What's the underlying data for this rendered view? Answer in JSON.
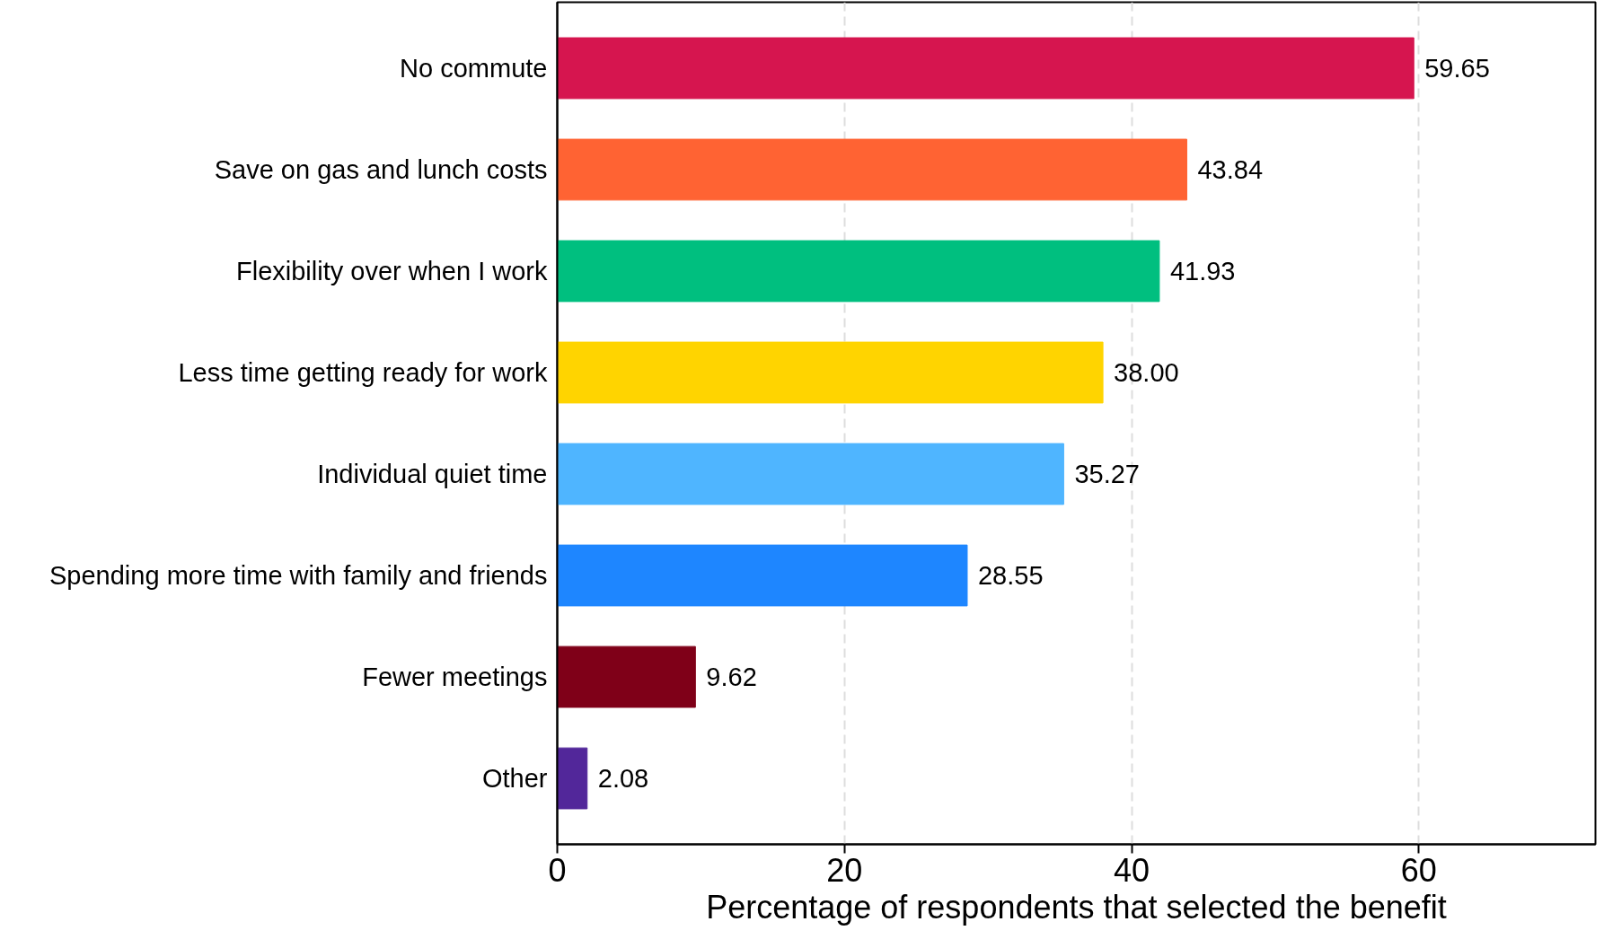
{
  "chart_data": {
    "type": "bar",
    "orientation": "horizontal",
    "xlabel": "Percentage of respondents that selected the benefit",
    "categories": [
      "No commute",
      "Save on gas and lunch costs",
      "Flexibility over when I work",
      "Less time getting ready for work",
      "Individual quiet time",
      "Spending more time with family and friends",
      "Fewer meetings",
      "Other"
    ],
    "values": [
      59.65,
      43.84,
      41.93,
      38.0,
      35.27,
      28.55,
      9.62,
      2.08
    ],
    "value_labels": [
      "59.65",
      "43.84",
      "41.93",
      "38.00",
      "35.27",
      "28.55",
      "9.62",
      "2.08"
    ],
    "colors": [
      "#d6154f",
      "#ff6333",
      "#00bf7f",
      "#ffd400",
      "#4fb5ff",
      "#1e86ff",
      "#7f0018",
      "#52279a"
    ],
    "xlim": [
      0,
      72.3
    ],
    "xticks": [
      0,
      20,
      40,
      60
    ],
    "grid": "x"
  }
}
